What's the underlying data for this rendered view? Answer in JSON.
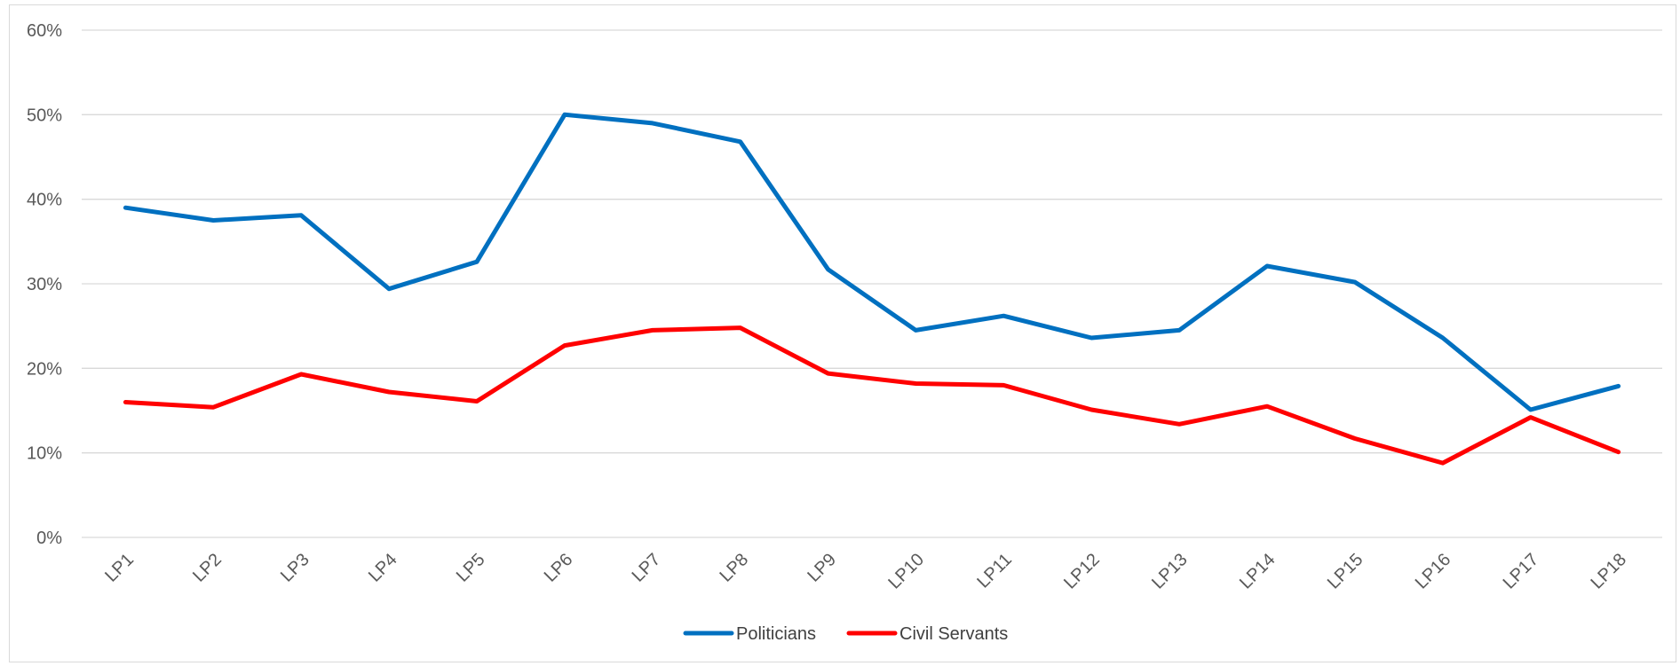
{
  "chart_data": {
    "type": "line",
    "title": "",
    "xlabel": "",
    "ylabel": "",
    "categories": [
      "LP1",
      "LP2",
      "LP3",
      "LP4",
      "LP5",
      "LP6",
      "LP7",
      "LP8",
      "LP9",
      "LP10",
      "LP11",
      "LP12",
      "LP13",
      "LP14",
      "LP15",
      "LP16",
      "LP17",
      "LP18"
    ],
    "ylim": [
      0,
      60
    ],
    "yticks": [
      "0%",
      "10%",
      "20%",
      "30%",
      "40%",
      "50%",
      "60%"
    ],
    "grid": true,
    "legend_position": "bottom",
    "series": [
      {
        "name": "Politicians",
        "color": "#0070C0",
        "values": [
          39.0,
          37.5,
          38.1,
          29.4,
          32.6,
          50.0,
          49.0,
          46.8,
          31.7,
          24.5,
          26.2,
          23.6,
          24.5,
          32.1,
          30.2,
          23.6,
          15.1,
          17.9
        ]
      },
      {
        "name": "Civil Servants",
        "color": "#FF0000",
        "values": [
          16.0,
          15.4,
          19.3,
          17.2,
          16.1,
          22.7,
          24.5,
          24.8,
          19.4,
          18.2,
          18.0,
          15.1,
          13.4,
          15.5,
          11.7,
          8.8,
          14.2,
          10.1
        ]
      }
    ]
  }
}
